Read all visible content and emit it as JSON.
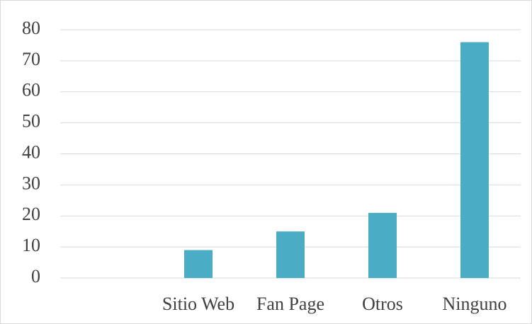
{
  "chart_data": {
    "type": "bar",
    "categories": [
      null,
      "Sitio Web",
      "Fan Page",
      "Otros",
      "Ninguno"
    ],
    "values": [
      null,
      9,
      15,
      21,
      76
    ],
    "color": "#4bacc6",
    "ylim": [
      0,
      80
    ],
    "yticks": [
      0,
      10,
      20,
      30,
      40,
      50,
      60,
      70,
      80
    ],
    "grid": true
  }
}
